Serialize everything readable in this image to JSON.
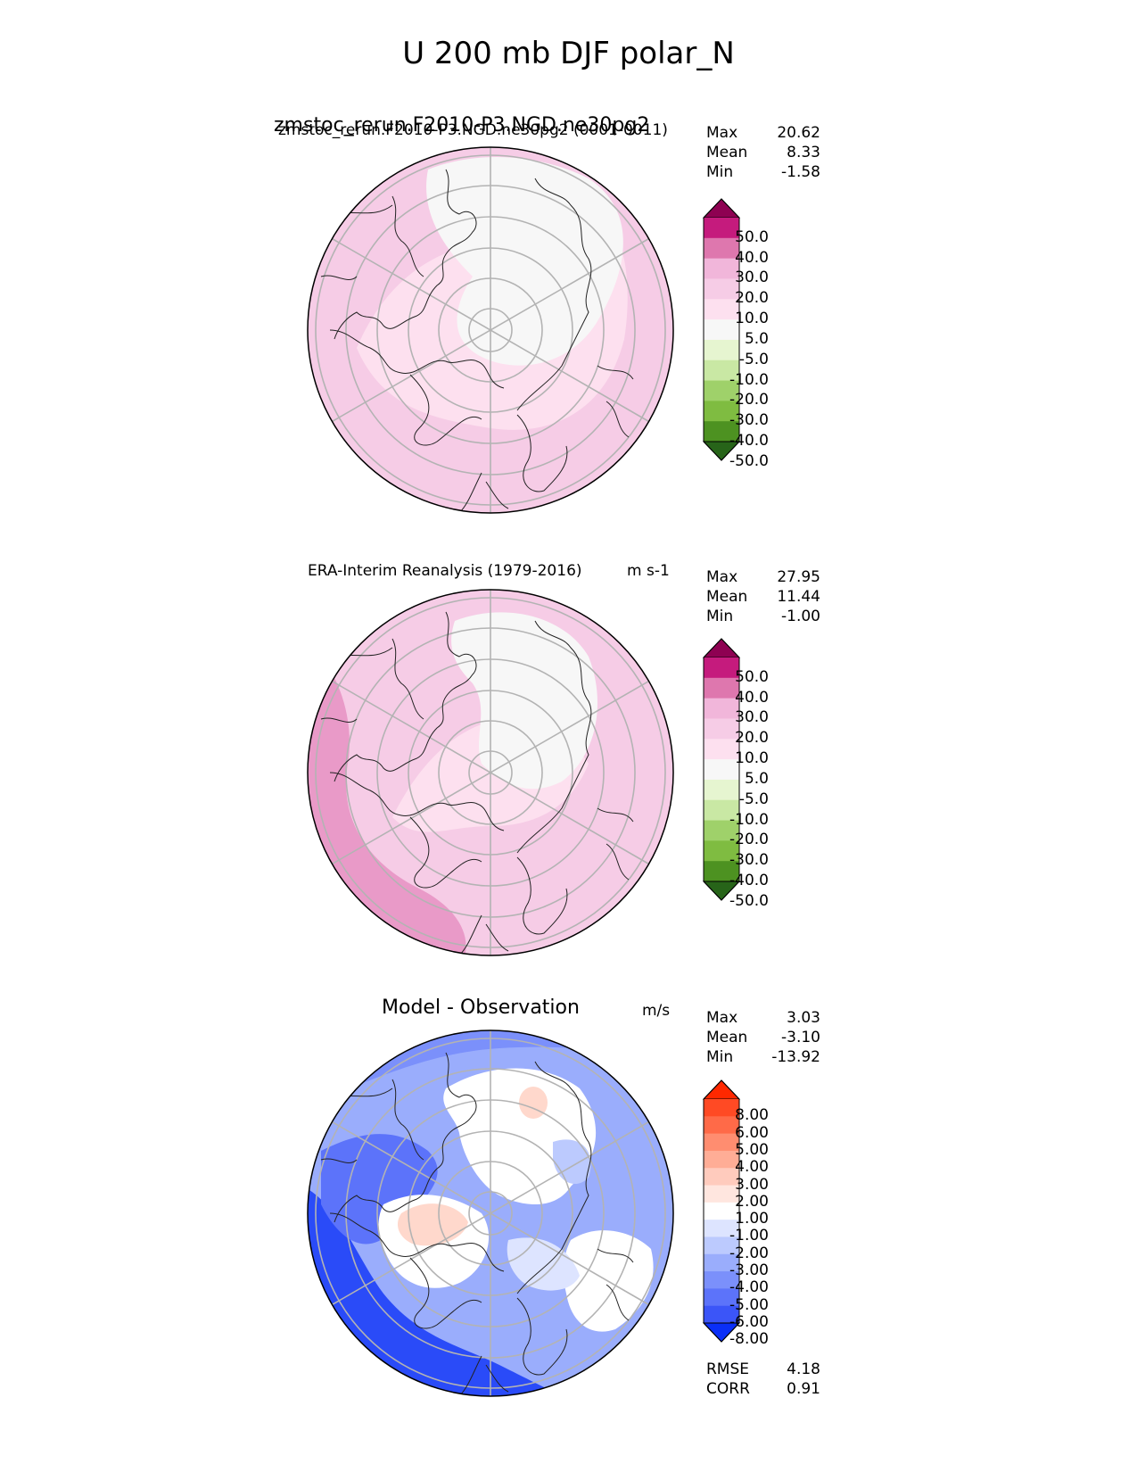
{
  "title": "U 200 mb DJF polar_N",
  "panels": [
    {
      "title": "zmstoc_rerun.F2010-P3.NGD.ne30pg2",
      "subtitle": "zmstoc_rerun.F2010-P3.NGD.ne30pg2 (0001-0011)",
      "units": "",
      "stats": {
        "max_label": "Max",
        "max": "20.62",
        "mean_label": "Mean",
        "mean": "8.33",
        "min_label": "Min",
        "min": "-1.58"
      }
    },
    {
      "title": "ERA-Interim Reanalysis (1979-2016)",
      "units": "m s-1",
      "stats": {
        "max_label": "Max",
        "max": "27.95",
        "mean_label": "Mean",
        "mean": "11.44",
        "min_label": "Min",
        "min": "-1.00"
      }
    },
    {
      "title": "Model - Observation",
      "units": "m/s",
      "stats": {
        "max_label": "Max",
        "max": "3.03",
        "mean_label": "Mean",
        "mean": "-3.10",
        "min_label": "Min",
        "min": "-13.92"
      },
      "metrics": {
        "rmse_label": "RMSE",
        "rmse": "4.18",
        "corr_label": "CORR",
        "corr": "0.91"
      }
    }
  ],
  "colorbar_main": {
    "labels": [
      "50.0",
      "40.0",
      "30.0",
      "20.0",
      "10.0",
      "5.0",
      "-5.0",
      "-10.0",
      "-20.0",
      "-30.0",
      "-40.0",
      "-50.0"
    ],
    "colors": [
      "#8e0152",
      "#c51b7d",
      "#de77ae",
      "#f1b6da",
      "#f6cce6",
      "#fde0ef",
      "#f7f7f7",
      "#e6f5d0",
      "#c9e8a4",
      "#9fd16a",
      "#7fbc41",
      "#4d9221",
      "#276419"
    ]
  },
  "colorbar_diff": {
    "labels": [
      "8.00",
      "6.00",
      "5.00",
      "4.00",
      "3.00",
      "2.00",
      "1.00",
      "-1.00",
      "-2.00",
      "-3.00",
      "-4.00",
      "-5.00",
      "-6.00",
      "-8.00"
    ],
    "colors": [
      "#ff2800",
      "#ff4a24",
      "#ff6a48",
      "#ff8d70",
      "#ffad96",
      "#ffcbbd",
      "#ffe6df",
      "#ffffff",
      "#dde4ff",
      "#bccafe",
      "#9aadfc",
      "#7b90fb",
      "#5c73fa",
      "#3b55f8",
      "#0a2ff7"
    ]
  },
  "maps": {
    "colors": {
      "white": "#f7f7f7",
      "light_pink": "#fde0ef",
      "pink": "#f6cce6",
      "mid_pink": "#e99ac8",
      "diff_white": "#ffffff",
      "diff_blue1": "#dde4ff",
      "diff_blue2": "#bccafe",
      "diff_blue3": "#9aadfc",
      "diff_blue4": "#7b90fb",
      "diff_blue5": "#5c73fa",
      "diff_blue6": "#2a4bf8",
      "diff_red1": "#ffd8cc",
      "coast": "#222222",
      "grid": "#b3b3b3"
    }
  }
}
